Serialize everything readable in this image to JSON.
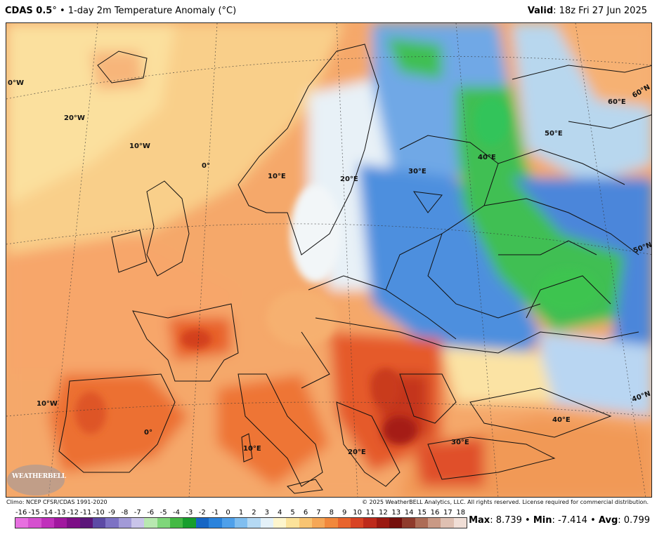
{
  "header": {
    "model": "CDAS 0.5",
    "degree_mark": "°",
    "bullet": " • ",
    "product": "1-day 2m Temperature Anomaly (°C)",
    "valid_label": "Valid",
    "valid_value": ": 18z Fri 27 Jun 2025"
  },
  "map": {
    "graticule_labels": [
      "0°W",
      "20°W",
      "10°W",
      "0°",
      "10°E",
      "20°E",
      "30°E",
      "40°E",
      "50°E",
      "60°E",
      "60°N",
      "50°N",
      "10°W",
      "0°",
      "10°E",
      "20°E",
      "30°E",
      "40°E",
      "40°N"
    ],
    "logo_text": "WEATHERBELL"
  },
  "footer": {
    "climo": "Climo: NCEP CFSR/CDAS 1991-2020",
    "copyright": "© 2025 WeatherBELL Analytics, LLC. All rights reserved. License required for commercial distribution."
  },
  "colorbar": {
    "ticks": [
      "-16",
      "-15",
      "-14",
      "-13",
      "-12",
      "-11",
      "-10",
      "-9",
      "-8",
      "-7",
      "-6",
      "-5",
      "-4",
      "-3",
      "-2",
      "-1",
      "0",
      "1",
      "2",
      "3",
      "4",
      "5",
      "6",
      "7",
      "8",
      "9",
      "10",
      "11",
      "12",
      "13",
      "14",
      "15",
      "16",
      "17",
      "18"
    ],
    "colors": [
      "#e76fe0",
      "#d550cf",
      "#c030bb",
      "#a1179f",
      "#7d0e86",
      "#5c167a",
      "#5c4aa5",
      "#7d72c4",
      "#a29ad7",
      "#c9c4e9",
      "#b8e8b0",
      "#7fd67a",
      "#44b944",
      "#179e2d",
      "#1666c4",
      "#2a83dc",
      "#4ea0ea",
      "#80beef",
      "#b5d9f3",
      "#e4f1f8",
      "#fdf5cd",
      "#fbe29a",
      "#f8c472",
      "#f5a757",
      "#f1883c",
      "#e8642d",
      "#d84324",
      "#bd2a1b",
      "#9a1810",
      "#750f0c",
      "#8f3b2c",
      "#ad6c56",
      "#c99985",
      "#dfc0b2",
      "#f0ded6"
    ]
  },
  "stats": {
    "max_label": "Max",
    "max_value": ": 8.739",
    "min_label": "Min",
    "min_value": ": -7.414",
    "avg_label": "Avg",
    "avg_value": ": 0.799",
    "sep": " • "
  }
}
